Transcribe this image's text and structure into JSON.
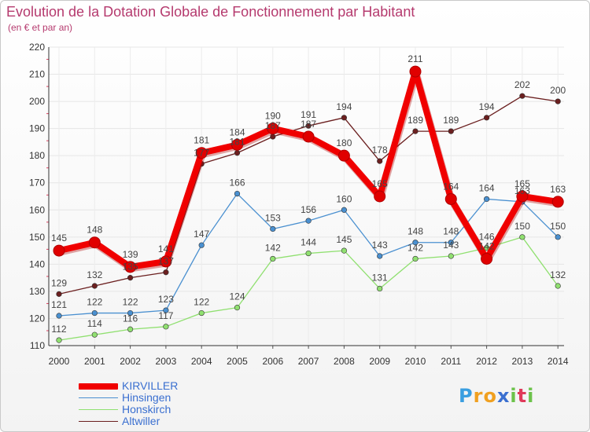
{
  "title": "Evolution de la Dotation Globale de Fonctionnement par Habitant",
  "subtitle": "(en € et par an)",
  "brand": [
    "P",
    "r",
    "o",
    "x",
    "i",
    "t",
    "i"
  ],
  "brand_colors": [
    "#3a9ee0",
    "#f0a020",
    "#f0a020",
    "#3a6fd0",
    "#6cc24a",
    "#e03a5a",
    "#6cc24a"
  ],
  "chart_data": {
    "type": "line",
    "title": "Evolution de la Dotation Globale de Fonctionnement par Habitant",
    "ylabel": "(en € et par an)",
    "x": [
      "2000",
      "2001",
      "2002",
      "2003",
      "2004",
      "2005",
      "2006",
      "2007",
      "2008",
      "2009",
      "2010",
      "2011",
      "2012",
      "2013",
      "2014"
    ],
    "ylim": [
      110,
      220
    ],
    "yticks": [
      "110",
      "120",
      "130",
      "140",
      "150",
      "160",
      "170",
      "180",
      "190",
      "200",
      "210",
      "220"
    ],
    "series": [
      {
        "name": "Altwiller",
        "color": "#6b1f1f",
        "values": [
          129,
          132,
          135,
          137,
          177,
          181,
          187,
          191,
          194,
          178,
          189,
          189,
          194,
          202,
          200
        ],
        "labels": [
          "129",
          "132",
          "135",
          "137",
          "177",
          "181",
          "187",
          "191",
          "194",
          "178",
          "189",
          "189",
          "194",
          "202",
          "200"
        ]
      },
      {
        "name": "Honskirch",
        "color": "#90e070",
        "values": [
          112,
          114,
          116,
          117,
          122,
          124,
          142,
          144,
          145,
          131,
          142,
          143,
          146,
          150,
          132
        ],
        "labels": [
          "112",
          "114",
          "116",
          "117",
          "122",
          "124",
          "142",
          "144",
          "145",
          "131",
          "142",
          "143",
          "146",
          "150",
          "132"
        ]
      },
      {
        "name": "Hinsingen",
        "color": "#4a90d0",
        "values": [
          121,
          122,
          122,
          123,
          147,
          166,
          153,
          156,
          160,
          143,
          148,
          148,
          164,
          163,
          150
        ],
        "labels": [
          "121",
          "122",
          "122",
          "123",
          "147",
          "166",
          "153",
          "156",
          "160",
          "143",
          "148",
          "148",
          "164",
          "163",
          "150"
        ]
      },
      {
        "name": "KIRVILLER",
        "color": "#f00000",
        "values": [
          145,
          148,
          139,
          141,
          181,
          184,
          190,
          187,
          180,
          165,
          211,
          164,
          142,
          165,
          163
        ],
        "labels": [
          "145",
          "148",
          "139",
          "141",
          "181",
          "184",
          "190",
          "187",
          "180",
          "165",
          "211",
          "164",
          "142",
          "165",
          "163"
        ]
      }
    ],
    "legend": [
      {
        "name": "KIRVILLER",
        "color": "#f00000"
      },
      {
        "name": "Hinsingen",
        "color": "#4a90d0"
      },
      {
        "name": "Honskirch",
        "color": "#90e070"
      },
      {
        "name": "Altwiller",
        "color": "#6b1f1f"
      }
    ]
  }
}
